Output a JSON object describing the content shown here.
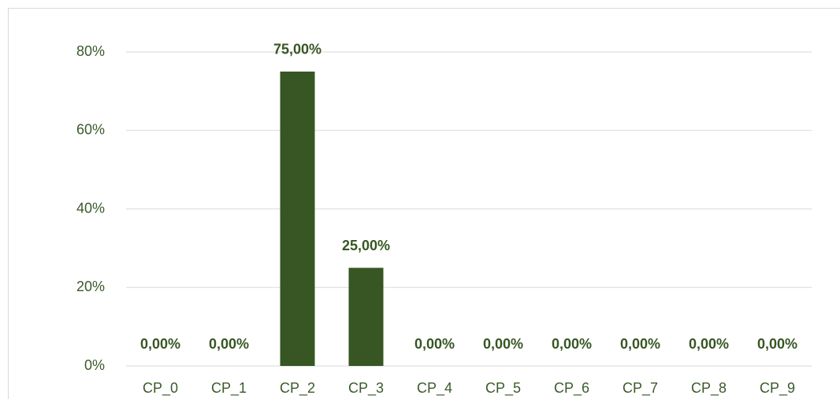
{
  "chart_data": {
    "type": "bar",
    "categories": [
      "CP_0",
      "CP_1",
      "CP_2",
      "CP_3",
      "CP_4",
      "CP_5",
      "CP_6",
      "CP_7",
      "CP_8",
      "CP_9"
    ],
    "values": [
      0,
      0,
      75,
      25,
      0,
      0,
      0,
      0,
      0,
      0
    ],
    "value_labels": [
      "0,00%",
      "0,00%",
      "75,00%",
      "25,00%",
      "0,00%",
      "0,00%",
      "0,00%",
      "0,00%",
      "0,00%",
      "0,00%"
    ],
    "color": "#375623",
    "ylim": [
      0,
      80
    ],
    "yticks": [
      {
        "value": 0,
        "label": "0%"
      },
      {
        "value": 20,
        "label": "20%"
      },
      {
        "value": 40,
        "label": "40%"
      },
      {
        "value": 60,
        "label": "60%"
      },
      {
        "value": 80,
        "label": "80%"
      }
    ],
    "grid": true
  }
}
